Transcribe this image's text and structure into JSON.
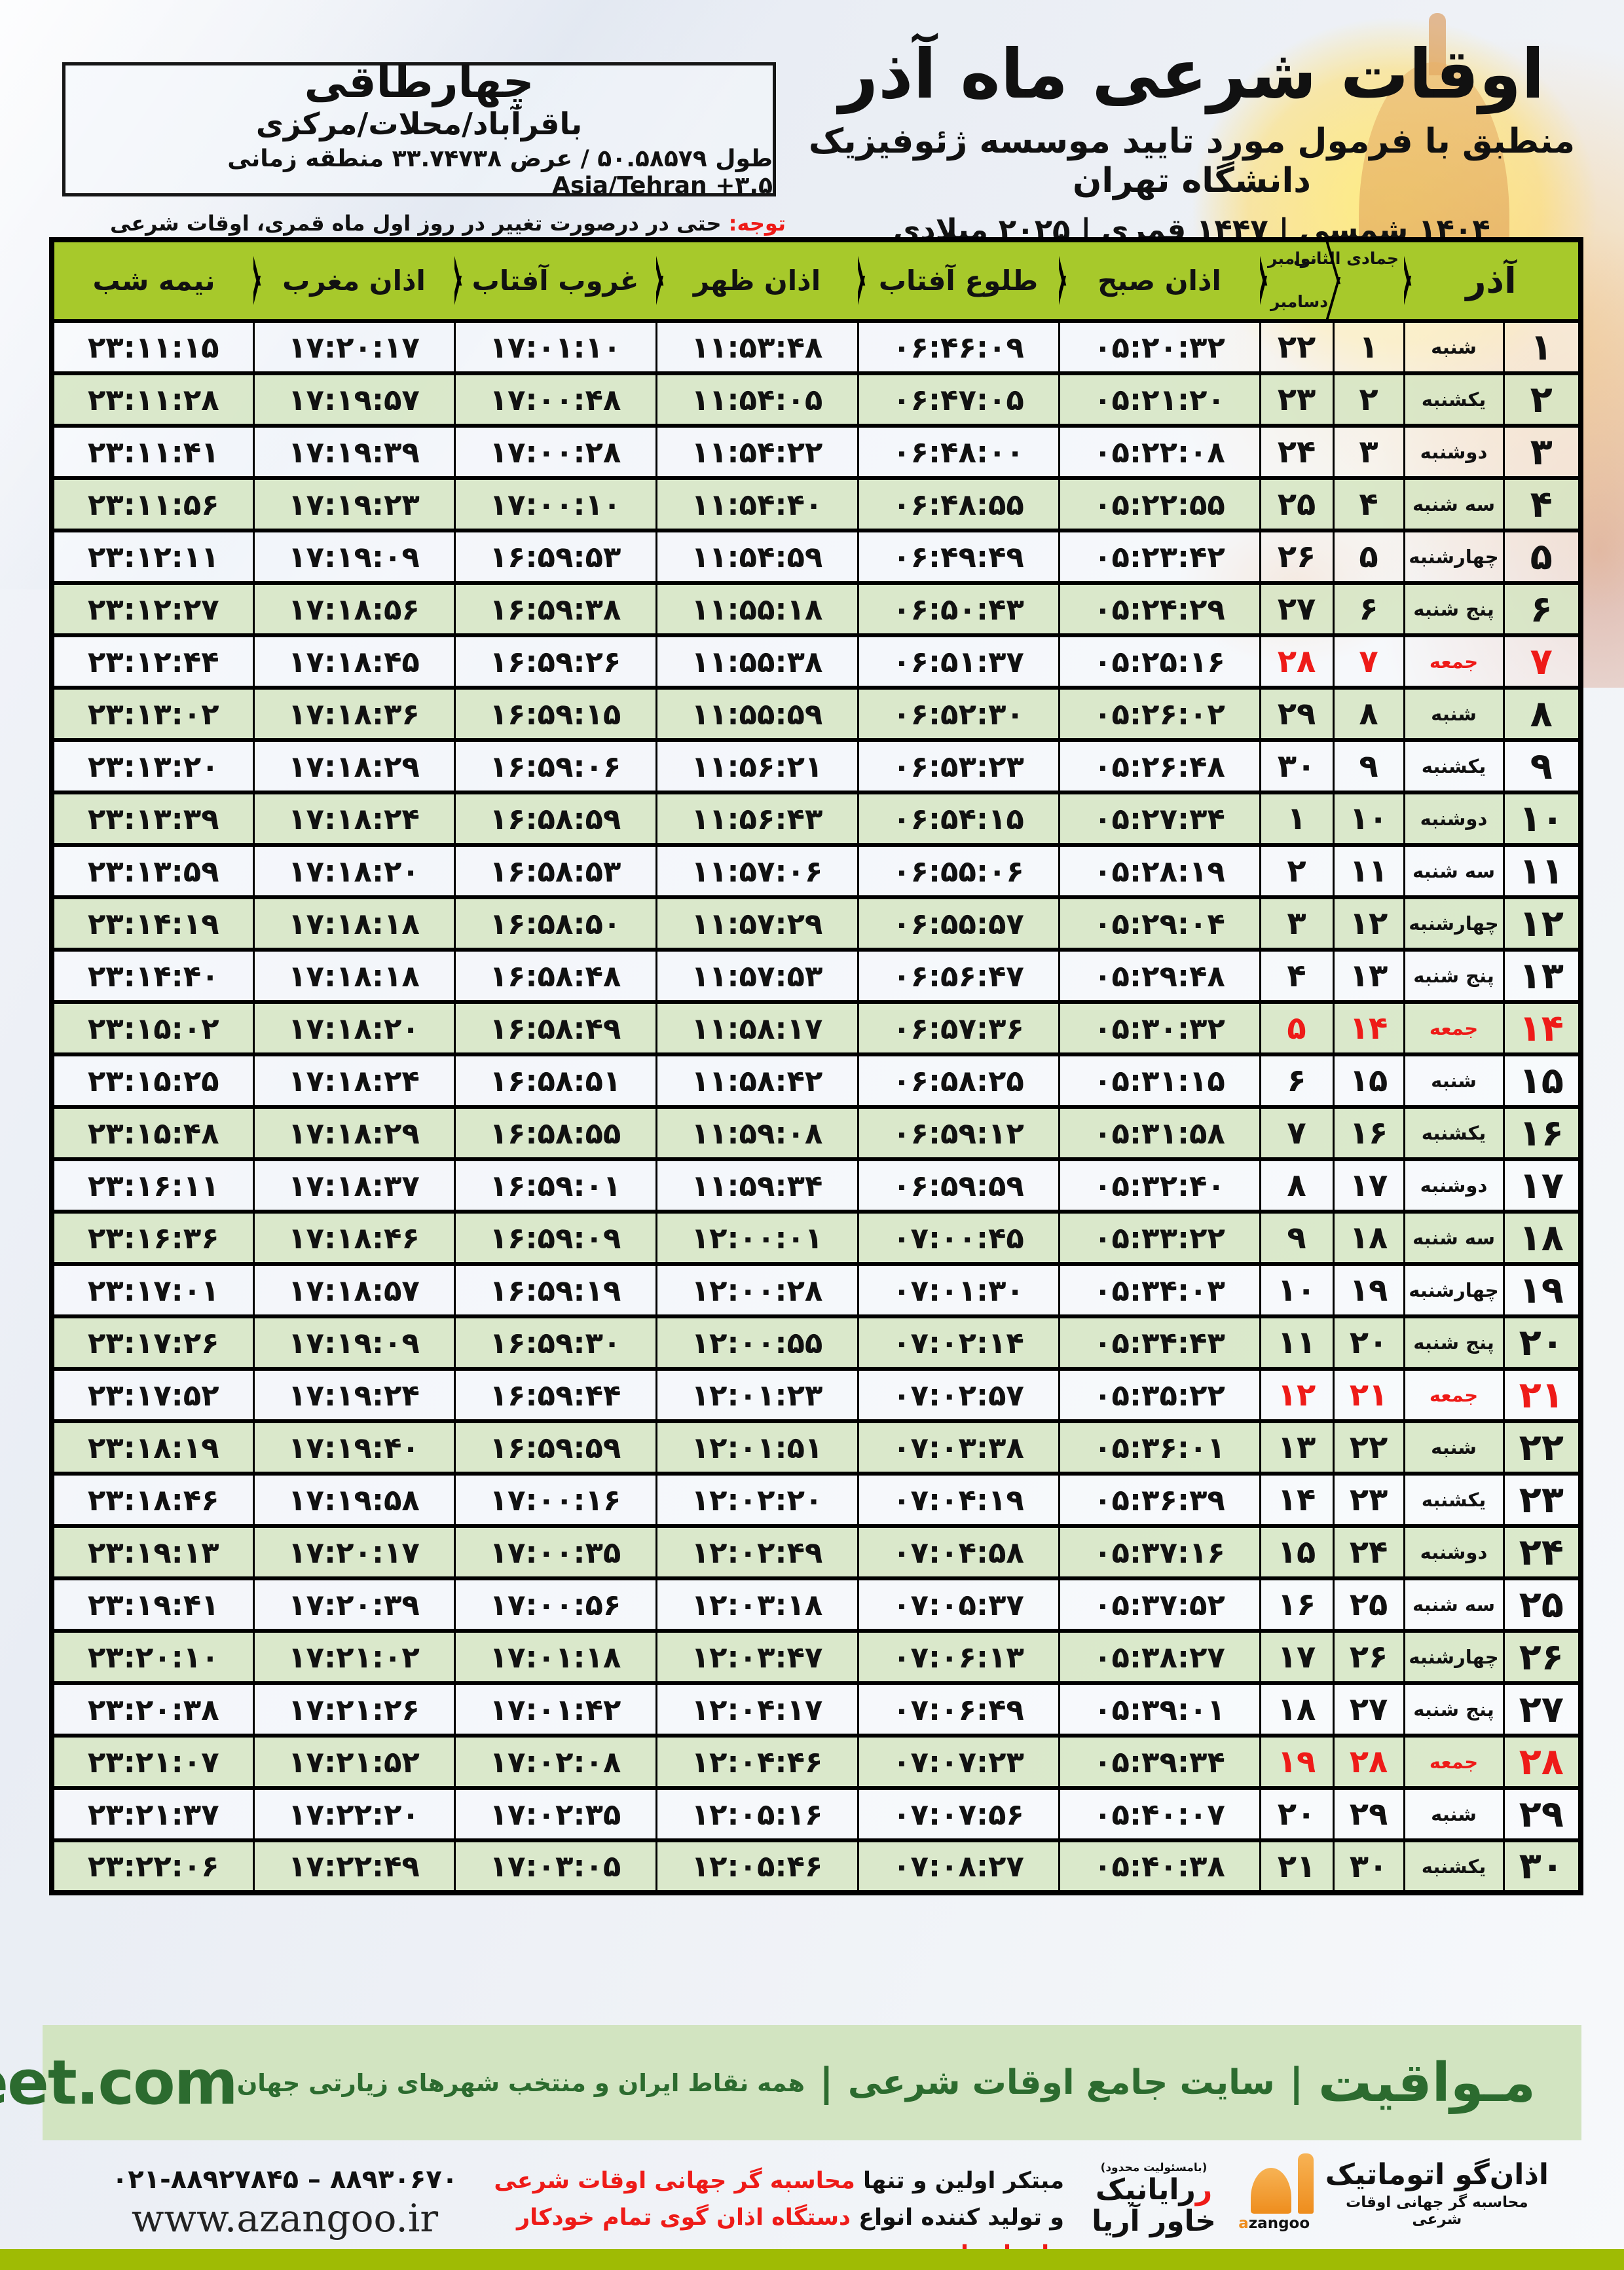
{
  "header": {
    "title": "اوقات شرعی ماه آذر",
    "subtitle": "منطبق با فرمول مورد تایید موسسه ژئوفیزیک دانشگاه تهران",
    "dates": "۱۴۰۴ شمسی | ۱۴۴۷ قمری | ۲۰۲۵ میلادی"
  },
  "location": {
    "name": "چهارطاقی",
    "region": "باقرآباد/محلات/مرکزی",
    "coords": "طول ۵۰.۵۸۵۷۹ / عرض ۳۳.۷۴۷۳۸ منطقه زمانی Asia/Tehran +۳.۵"
  },
  "note": {
    "label": "توجه:",
    "text": "حتی در درصورت تغییر در روز اول ماه قمری، اوقات شرعی کماکان برای روزهای شمسی و میلادی معتبر است."
  },
  "table": {
    "headers": {
      "azar": "آذر",
      "jumada": "جمادی الثانی",
      "nov": "نوامبر",
      "dec": "دسامبر",
      "sobh": "اذان صبح",
      "tolu": "طلوع آفتاب",
      "zohr": "اذان ظهر",
      "ghorub": "غروب آفتاب",
      "maghreb": "اذان مغرب",
      "nimeshab": "نیمه شب"
    },
    "rows": [
      {
        "azar": "۱",
        "weekday": "شنبه",
        "jumada": "۱",
        "greg": "۲۲",
        "sobh": "۰۵:۲۰:۳۲",
        "tolu": "۰۶:۴۶:۰۹",
        "zohr": "۱۱:۵۳:۴۸",
        "ghorub": "۱۷:۰۱:۱۰",
        "maghreb": "۱۷:۲۰:۱۷",
        "nimeshab": "۲۳:۱۱:۱۵",
        "friday": false
      },
      {
        "azar": "۲",
        "weekday": "یکشنبه",
        "jumada": "۲",
        "greg": "۲۳",
        "sobh": "۰۵:۲۱:۲۰",
        "tolu": "۰۶:۴۷:۰۵",
        "zohr": "۱۱:۵۴:۰۵",
        "ghorub": "۱۷:۰۰:۴۸",
        "maghreb": "۱۷:۱۹:۵۷",
        "nimeshab": "۲۳:۱۱:۲۸",
        "friday": false
      },
      {
        "azar": "۳",
        "weekday": "دوشنبه",
        "jumada": "۳",
        "greg": "۲۴",
        "sobh": "۰۵:۲۲:۰۸",
        "tolu": "۰۶:۴۸:۰۰",
        "zohr": "۱۱:۵۴:۲۲",
        "ghorub": "۱۷:۰۰:۲۸",
        "maghreb": "۱۷:۱۹:۳۹",
        "nimeshab": "۲۳:۱۱:۴۱",
        "friday": false
      },
      {
        "azar": "۴",
        "weekday": "سه شنبه",
        "jumada": "۴",
        "greg": "۲۵",
        "sobh": "۰۵:۲۲:۵۵",
        "tolu": "۰۶:۴۸:۵۵",
        "zohr": "۱۱:۵۴:۴۰",
        "ghorub": "۱۷:۰۰:۱۰",
        "maghreb": "۱۷:۱۹:۲۳",
        "nimeshab": "۲۳:۱۱:۵۶",
        "friday": false
      },
      {
        "azar": "۵",
        "weekday": "چهارشنبه",
        "jumada": "۵",
        "greg": "۲۶",
        "sobh": "۰۵:۲۳:۴۲",
        "tolu": "۰۶:۴۹:۴۹",
        "zohr": "۱۱:۵۴:۵۹",
        "ghorub": "۱۶:۵۹:۵۳",
        "maghreb": "۱۷:۱۹:۰۹",
        "nimeshab": "۲۳:۱۲:۱۱",
        "friday": false
      },
      {
        "azar": "۶",
        "weekday": "پنج شنبه",
        "jumada": "۶",
        "greg": "۲۷",
        "sobh": "۰۵:۲۴:۲۹",
        "tolu": "۰۶:۵۰:۴۳",
        "zohr": "۱۱:۵۵:۱۸",
        "ghorub": "۱۶:۵۹:۳۸",
        "maghreb": "۱۷:۱۸:۵۶",
        "nimeshab": "۲۳:۱۲:۲۷",
        "friday": false
      },
      {
        "azar": "۷",
        "weekday": "جمعه",
        "jumada": "۷",
        "greg": "۲۸",
        "sobh": "۰۵:۲۵:۱۶",
        "tolu": "۰۶:۵۱:۳۷",
        "zohr": "۱۱:۵۵:۳۸",
        "ghorub": "۱۶:۵۹:۲۶",
        "maghreb": "۱۷:۱۸:۴۵",
        "nimeshab": "۲۳:۱۲:۴۴",
        "friday": true
      },
      {
        "azar": "۸",
        "weekday": "شنبه",
        "jumada": "۸",
        "greg": "۲۹",
        "sobh": "۰۵:۲۶:۰۲",
        "tolu": "۰۶:۵۲:۳۰",
        "zohr": "۱۱:۵۵:۵۹",
        "ghorub": "۱۶:۵۹:۱۵",
        "maghreb": "۱۷:۱۸:۳۶",
        "nimeshab": "۲۳:۱۳:۰۲",
        "friday": false
      },
      {
        "azar": "۹",
        "weekday": "یکشنبه",
        "jumada": "۹",
        "greg": "۳۰",
        "sobh": "۰۵:۲۶:۴۸",
        "tolu": "۰۶:۵۳:۲۳",
        "zohr": "۱۱:۵۶:۲۱",
        "ghorub": "۱۶:۵۹:۰۶",
        "maghreb": "۱۷:۱۸:۲۹",
        "nimeshab": "۲۳:۱۳:۲۰",
        "friday": false
      },
      {
        "azar": "۱۰",
        "weekday": "دوشنبه",
        "jumada": "۱۰",
        "greg": "۱",
        "sobh": "۰۵:۲۷:۳۴",
        "tolu": "۰۶:۵۴:۱۵",
        "zohr": "۱۱:۵۶:۴۳",
        "ghorub": "۱۶:۵۸:۵۹",
        "maghreb": "۱۷:۱۸:۲۴",
        "nimeshab": "۲۳:۱۳:۳۹",
        "friday": false
      },
      {
        "azar": "۱۱",
        "weekday": "سه شنبه",
        "jumada": "۱۱",
        "greg": "۲",
        "sobh": "۰۵:۲۸:۱۹",
        "tolu": "۰۶:۵۵:۰۶",
        "zohr": "۱۱:۵۷:۰۶",
        "ghorub": "۱۶:۵۸:۵۳",
        "maghreb": "۱۷:۱۸:۲۰",
        "nimeshab": "۲۳:۱۳:۵۹",
        "friday": false
      },
      {
        "azar": "۱۲",
        "weekday": "چهارشنبه",
        "jumada": "۱۲",
        "greg": "۳",
        "sobh": "۰۵:۲۹:۰۴",
        "tolu": "۰۶:۵۵:۵۷",
        "zohr": "۱۱:۵۷:۲۹",
        "ghorub": "۱۶:۵۸:۵۰",
        "maghreb": "۱۷:۱۸:۱۸",
        "nimeshab": "۲۳:۱۴:۱۹",
        "friday": false
      },
      {
        "azar": "۱۳",
        "weekday": "پنج شنبه",
        "jumada": "۱۳",
        "greg": "۴",
        "sobh": "۰۵:۲۹:۴۸",
        "tolu": "۰۶:۵۶:۴۷",
        "zohr": "۱۱:۵۷:۵۳",
        "ghorub": "۱۶:۵۸:۴۸",
        "maghreb": "۱۷:۱۸:۱۸",
        "nimeshab": "۲۳:۱۴:۴۰",
        "friday": false
      },
      {
        "azar": "۱۴",
        "weekday": "جمعه",
        "jumada": "۱۴",
        "greg": "۵",
        "sobh": "۰۵:۳۰:۳۲",
        "tolu": "۰۶:۵۷:۳۶",
        "zohr": "۱۱:۵۸:۱۷",
        "ghorub": "۱۶:۵۸:۴۹",
        "maghreb": "۱۷:۱۸:۲۰",
        "nimeshab": "۲۳:۱۵:۰۲",
        "friday": true
      },
      {
        "azar": "۱۵",
        "weekday": "شنبه",
        "jumada": "۱۵",
        "greg": "۶",
        "sobh": "۰۵:۳۱:۱۵",
        "tolu": "۰۶:۵۸:۲۵",
        "zohr": "۱۱:۵۸:۴۲",
        "ghorub": "۱۶:۵۸:۵۱",
        "maghreb": "۱۷:۱۸:۲۴",
        "nimeshab": "۲۳:۱۵:۲۵",
        "friday": false
      },
      {
        "azar": "۱۶",
        "weekday": "یکشنبه",
        "jumada": "۱۶",
        "greg": "۷",
        "sobh": "۰۵:۳۱:۵۸",
        "tolu": "۰۶:۵۹:۱۲",
        "zohr": "۱۱:۵۹:۰۸",
        "ghorub": "۱۶:۵۸:۵۵",
        "maghreb": "۱۷:۱۸:۲۹",
        "nimeshab": "۲۳:۱۵:۴۸",
        "friday": false
      },
      {
        "azar": "۱۷",
        "weekday": "دوشنبه",
        "jumada": "۱۷",
        "greg": "۸",
        "sobh": "۰۵:۳۲:۴۰",
        "tolu": "۰۶:۵۹:۵۹",
        "zohr": "۱۱:۵۹:۳۴",
        "ghorub": "۱۶:۵۹:۰۱",
        "maghreb": "۱۷:۱۸:۳۷",
        "nimeshab": "۲۳:۱۶:۱۱",
        "friday": false
      },
      {
        "azar": "۱۸",
        "weekday": "سه شنبه",
        "jumada": "۱۸",
        "greg": "۹",
        "sobh": "۰۵:۳۳:۲۲",
        "tolu": "۰۷:۰۰:۴۵",
        "zohr": "۱۲:۰۰:۰۱",
        "ghorub": "۱۶:۵۹:۰۹",
        "maghreb": "۱۷:۱۸:۴۶",
        "nimeshab": "۲۳:۱۶:۳۶",
        "friday": false
      },
      {
        "azar": "۱۹",
        "weekday": "چهارشنبه",
        "jumada": "۱۹",
        "greg": "۱۰",
        "sobh": "۰۵:۳۴:۰۳",
        "tolu": "۰۷:۰۱:۳۰",
        "zohr": "۱۲:۰۰:۲۸",
        "ghorub": "۱۶:۵۹:۱۹",
        "maghreb": "۱۷:۱۸:۵۷",
        "nimeshab": "۲۳:۱۷:۰۱",
        "friday": false
      },
      {
        "azar": "۲۰",
        "weekday": "پنج شنبه",
        "jumada": "۲۰",
        "greg": "۱۱",
        "sobh": "۰۵:۳۴:۴۳",
        "tolu": "۰۷:۰۲:۱۴",
        "zohr": "۱۲:۰۰:۵۵",
        "ghorub": "۱۶:۵۹:۳۰",
        "maghreb": "۱۷:۱۹:۰۹",
        "nimeshab": "۲۳:۱۷:۲۶",
        "friday": false
      },
      {
        "azar": "۲۱",
        "weekday": "جمعه",
        "jumada": "۲۱",
        "greg": "۱۲",
        "sobh": "۰۵:۳۵:۲۲",
        "tolu": "۰۷:۰۲:۵۷",
        "zohr": "۱۲:۰۱:۲۳",
        "ghorub": "۱۶:۵۹:۴۴",
        "maghreb": "۱۷:۱۹:۲۴",
        "nimeshab": "۲۳:۱۷:۵۲",
        "friday": true
      },
      {
        "azar": "۲۲",
        "weekday": "شنبه",
        "jumada": "۲۲",
        "greg": "۱۳",
        "sobh": "۰۵:۳۶:۰۱",
        "tolu": "۰۷:۰۳:۳۸",
        "zohr": "۱۲:۰۱:۵۱",
        "ghorub": "۱۶:۵۹:۵۹",
        "maghreb": "۱۷:۱۹:۴۰",
        "nimeshab": "۲۳:۱۸:۱۹",
        "friday": false
      },
      {
        "azar": "۲۳",
        "weekday": "یکشنبه",
        "jumada": "۲۳",
        "greg": "۱۴",
        "sobh": "۰۵:۳۶:۳۹",
        "tolu": "۰۷:۰۴:۱۹",
        "zohr": "۱۲:۰۲:۲۰",
        "ghorub": "۱۷:۰۰:۱۶",
        "maghreb": "۱۷:۱۹:۵۸",
        "nimeshab": "۲۳:۱۸:۴۶",
        "friday": false
      },
      {
        "azar": "۲۴",
        "weekday": "دوشنبه",
        "jumada": "۲۴",
        "greg": "۱۵",
        "sobh": "۰۵:۳۷:۱۶",
        "tolu": "۰۷:۰۴:۵۸",
        "zohr": "۱۲:۰۲:۴۹",
        "ghorub": "۱۷:۰۰:۳۵",
        "maghreb": "۱۷:۲۰:۱۷",
        "nimeshab": "۲۳:۱۹:۱۳",
        "friday": false
      },
      {
        "azar": "۲۵",
        "weekday": "سه شنبه",
        "jumada": "۲۵",
        "greg": "۱۶",
        "sobh": "۰۵:۳۷:۵۲",
        "tolu": "۰۷:۰۵:۳۷",
        "zohr": "۱۲:۰۳:۱۸",
        "ghorub": "۱۷:۰۰:۵۶",
        "maghreb": "۱۷:۲۰:۳۹",
        "nimeshab": "۲۳:۱۹:۴۱",
        "friday": false
      },
      {
        "azar": "۲۶",
        "weekday": "چهارشنبه",
        "jumada": "۲۶",
        "greg": "۱۷",
        "sobh": "۰۵:۳۸:۲۷",
        "tolu": "۰۷:۰۶:۱۳",
        "zohr": "۱۲:۰۳:۴۷",
        "ghorub": "۱۷:۰۱:۱۸",
        "maghreb": "۱۷:۲۱:۰۲",
        "nimeshab": "۲۳:۲۰:۱۰",
        "friday": false
      },
      {
        "azar": "۲۷",
        "weekday": "پنج شنبه",
        "jumada": "۲۷",
        "greg": "۱۸",
        "sobh": "۰۵:۳۹:۰۱",
        "tolu": "۰۷:۰۶:۴۹",
        "zohr": "۱۲:۰۴:۱۷",
        "ghorub": "۱۷:۰۱:۴۲",
        "maghreb": "۱۷:۲۱:۲۶",
        "nimeshab": "۲۳:۲۰:۳۸",
        "friday": false
      },
      {
        "azar": "۲۸",
        "weekday": "جمعه",
        "jumada": "۲۸",
        "greg": "۱۹",
        "sobh": "۰۵:۳۹:۳۴",
        "tolu": "۰۷:۰۷:۲۳",
        "zohr": "۱۲:۰۴:۴۶",
        "ghorub": "۱۷:۰۲:۰۸",
        "maghreb": "۱۷:۲۱:۵۲",
        "nimeshab": "۲۳:۲۱:۰۷",
        "friday": true
      },
      {
        "azar": "۲۹",
        "weekday": "شنبه",
        "jumada": "۲۹",
        "greg": "۲۰",
        "sobh": "۰۵:۴۰:۰۷",
        "tolu": "۰۷:۰۷:۵۶",
        "zohr": "۱۲:۰۵:۱۶",
        "ghorub": "۱۷:۰۲:۳۵",
        "maghreb": "۱۷:۲۲:۲۰",
        "nimeshab": "۲۳:۲۱:۳۷",
        "friday": false
      },
      {
        "azar": "۳۰",
        "weekday": "یکشنبه",
        "jumada": "۳۰",
        "greg": "۲۱",
        "sobh": "۰۵:۴۰:۳۸",
        "tolu": "۰۷:۰۸:۲۷",
        "zohr": "۱۲:۰۵:۴۶",
        "ghorub": "۱۷:۰۳:۰۵",
        "maghreb": "۱۷:۲۲:۴۹",
        "nimeshab": "۲۳:۲۲:۰۶",
        "friday": false
      }
    ]
  },
  "footer": {
    "brand_fa": "مـواقیت",
    "tagline1": "سایت جامع اوقات شرعی",
    "tagline2": "همه نقاط ایران و منتخب شهرهای زیارتی جهان",
    "website": "mavaqeet.com"
  },
  "bottom": {
    "phone": "۰۲۱-۸۸۹۲۷۸۴۵ – ۸۸۹۳۰۶۷۰",
    "website": "www.azangoo.ir",
    "line1_black": "مبتکر اولین و تنها",
    "line1_red": "محاسبه گر جهانی اوقات شرعی",
    "line2_black": "و تولید کننده انواع",
    "line2_red": "دستگاه اذان گوی تمام خودکار ماهواره ای",
    "rayanik_sub": "(بامسئولیت محدود)",
    "rayanik_name": "رایانیک خاور آریا",
    "azangoo_fa": "اذان‌گو اتوماتیک",
    "azangoo_tagline": "محاسبه گر جهانی اوقات شرعی",
    "azangoo_en": "azangoo"
  },
  "colors": {
    "header_green": "#a7c92b",
    "row_green": "#d8e7c7",
    "friday_red": "#ee1b18",
    "footer_bg": "#d2e4c1",
    "footer_fg": "#2c6b2f",
    "bottom_bar": "#9fbb04",
    "logo_orange": "#ef8d1e"
  }
}
